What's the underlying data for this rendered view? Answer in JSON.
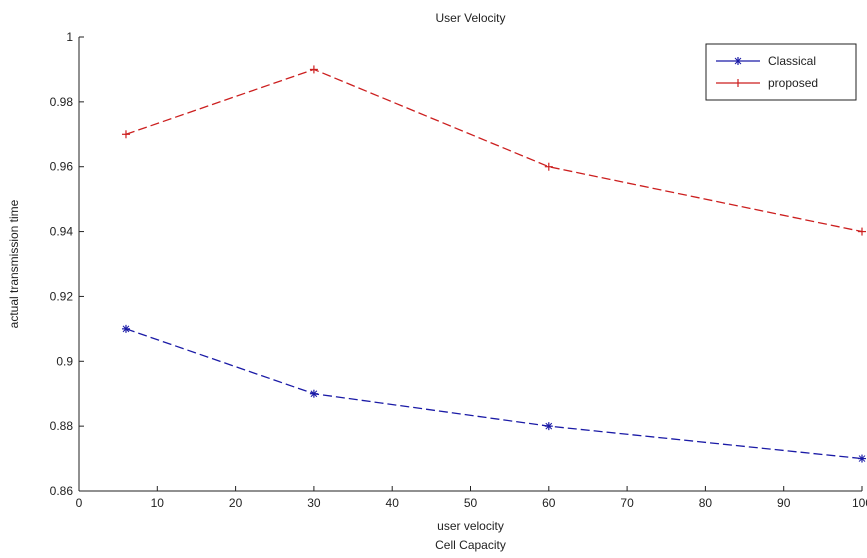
{
  "chart_data": {
    "type": "line",
    "title": "User Velocity",
    "xlabel": "user velocity",
    "xlabel2": "Cell Capacity",
    "ylabel": "actual transmission time",
    "xlim": [
      0,
      100
    ],
    "ylim": [
      0.86,
      1.0
    ],
    "x_ticks": [
      "0",
      "10",
      "20",
      "30",
      "40",
      "50",
      "60",
      "70",
      "80",
      "90",
      "100"
    ],
    "y_ticks": [
      "0.86",
      "0.88",
      "0.9",
      "0.92",
      "0.94",
      "0.96",
      "0.98",
      "1"
    ],
    "x": [
      6,
      30,
      60,
      100
    ],
    "series": [
      {
        "name": "Classical",
        "values": [
          0.91,
          0.89,
          0.88,
          0.87
        ],
        "color": "#1a1aa6",
        "marker": "*"
      },
      {
        "name": "proposed",
        "values": [
          0.97,
          0.99,
          0.96,
          0.94
        ],
        "color": "#cc1f1f",
        "marker": "+"
      }
    ],
    "legend_position": "top-right",
    "grid": false
  }
}
